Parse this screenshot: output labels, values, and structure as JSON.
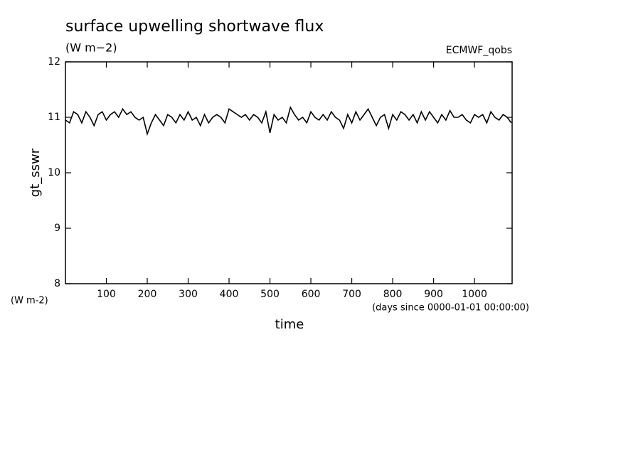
{
  "chart_data": {
    "type": "line",
    "title": "surface upwelling shortwave flux",
    "subtitle": "(W m−2)",
    "annotation": "ECMWF_qobs",
    "y_label": "gt_sswr",
    "y_units": "(W m-2)",
    "x_units": "(days since 0000-01-01 00:00:00)",
    "x_label": "time",
    "color": "#000000",
    "xlim": [
      0,
      1092
    ],
    "ylim": [
      8,
      12
    ],
    "xticks": [
      100,
      200,
      300,
      400,
      500,
      600,
      700,
      800,
      900,
      1000
    ],
    "yticks": [
      8,
      9,
      10,
      11,
      12
    ],
    "x": [
      0,
      10,
      20,
      30,
      40,
      50,
      60,
      70,
      80,
      90,
      100,
      110,
      120,
      130,
      140,
      150,
      160,
      170,
      180,
      190,
      200,
      210,
      220,
      230,
      240,
      250,
      260,
      270,
      280,
      290,
      300,
      310,
      320,
      330,
      340,
      350,
      360,
      370,
      380,
      390,
      400,
      410,
      420,
      430,
      440,
      450,
      460,
      470,
      480,
      490,
      500,
      510,
      520,
      530,
      540,
      550,
      560,
      570,
      580,
      590,
      600,
      610,
      620,
      630,
      640,
      650,
      660,
      670,
      680,
      690,
      700,
      710,
      720,
      730,
      740,
      750,
      760,
      770,
      780,
      790,
      800,
      810,
      820,
      830,
      840,
      850,
      860,
      870,
      880,
      890,
      900,
      910,
      920,
      930,
      940,
      950,
      960,
      970,
      980,
      990,
      1000,
      1010,
      1020,
      1030,
      1040,
      1050,
      1060,
      1070,
      1080,
      1090
    ],
    "values": [
      10.95,
      10.9,
      11.1,
      11.05,
      10.9,
      11.1,
      11.0,
      10.85,
      11.05,
      11.1,
      10.95,
      11.05,
      11.1,
      11.0,
      11.15,
      11.05,
      11.1,
      11.0,
      10.95,
      11.0,
      10.7,
      10.9,
      11.05,
      10.95,
      10.85,
      11.05,
      11.0,
      10.9,
      11.05,
      10.95,
      11.1,
      10.95,
      11.0,
      10.85,
      11.05,
      10.9,
      11.0,
      11.05,
      11.0,
      10.9,
      11.15,
      11.1,
      11.05,
      11.0,
      11.05,
      10.95,
      11.05,
      11.0,
      10.9,
      11.1,
      10.72,
      11.05,
      10.95,
      11.0,
      10.9,
      11.18,
      11.05,
      10.95,
      11.0,
      10.9,
      11.1,
      11.0,
      10.95,
      11.05,
      10.95,
      11.1,
      11.0,
      10.95,
      10.8,
      11.05,
      10.9,
      11.1,
      10.95,
      11.05,
      11.15,
      11.0,
      10.85,
      11.0,
      11.05,
      10.8,
      11.05,
      10.95,
      11.1,
      11.05,
      10.95,
      11.05,
      10.9,
      11.1,
      10.95,
      11.1,
      11.0,
      10.9,
      11.05,
      10.95,
      11.12,
      11.0,
      11.0,
      11.05,
      10.95,
      10.9,
      11.05,
      11.0,
      11.05,
      10.9,
      11.1,
      11.0,
      10.95,
      11.05,
      11.0,
      10.9
    ]
  }
}
